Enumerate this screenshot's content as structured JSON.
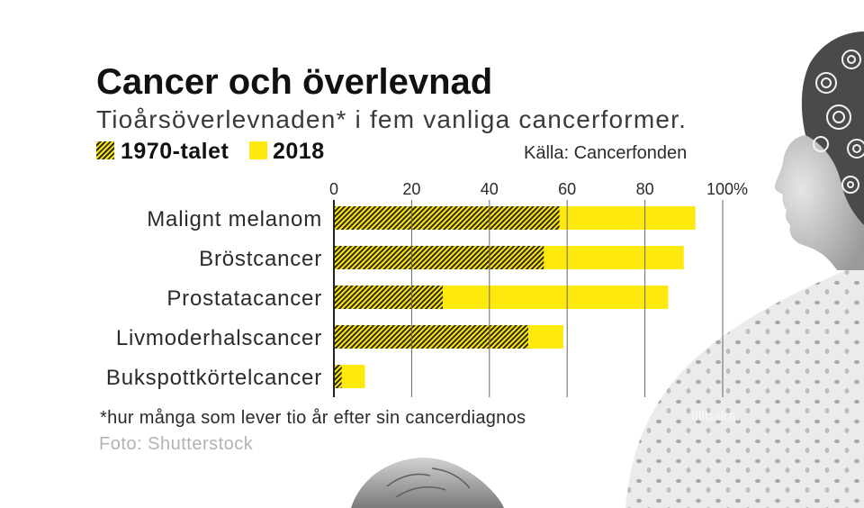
{
  "colors": {
    "yellow": "#fee90f",
    "hatch_line": "#2f2a14",
    "axis": "#222222",
    "grid": "#666666",
    "text": "#2b2b2b",
    "muted": "#b3b3b3"
  },
  "chart_data": {
    "type": "bar",
    "orientation": "horizontal",
    "title": "Cancer och överlevnad",
    "subtitle": "Tioårsöverlevnaden* i fem vanliga cancerformer.",
    "source": "Källa: Cancerfonden",
    "footnote": "*hur många som lever tio år efter sin cancerdiagnos",
    "categories": [
      "Malignt melanom",
      "Bröstcancer",
      "Prostatacancer",
      "Livmoderhalscancer",
      "Bukspottkörtelcancer"
    ],
    "series": [
      {
        "name": "1970-talet",
        "values": [
          58,
          54,
          28,
          50,
          2
        ]
      },
      {
        "name": "2018",
        "values": [
          93,
          90,
          86,
          59,
          8
        ]
      }
    ],
    "xlim": [
      0,
      100
    ],
    "x_ticks": [
      0,
      20,
      40,
      60,
      80,
      100
    ],
    "x_tick_labels": [
      "0",
      "20",
      "40",
      "60",
      "80",
      "100%"
    ],
    "grid": true,
    "legend": "top-left"
  },
  "photo": {
    "credit": "Foto: Shutterstock",
    "caption_fragment": "tillbaka."
  }
}
